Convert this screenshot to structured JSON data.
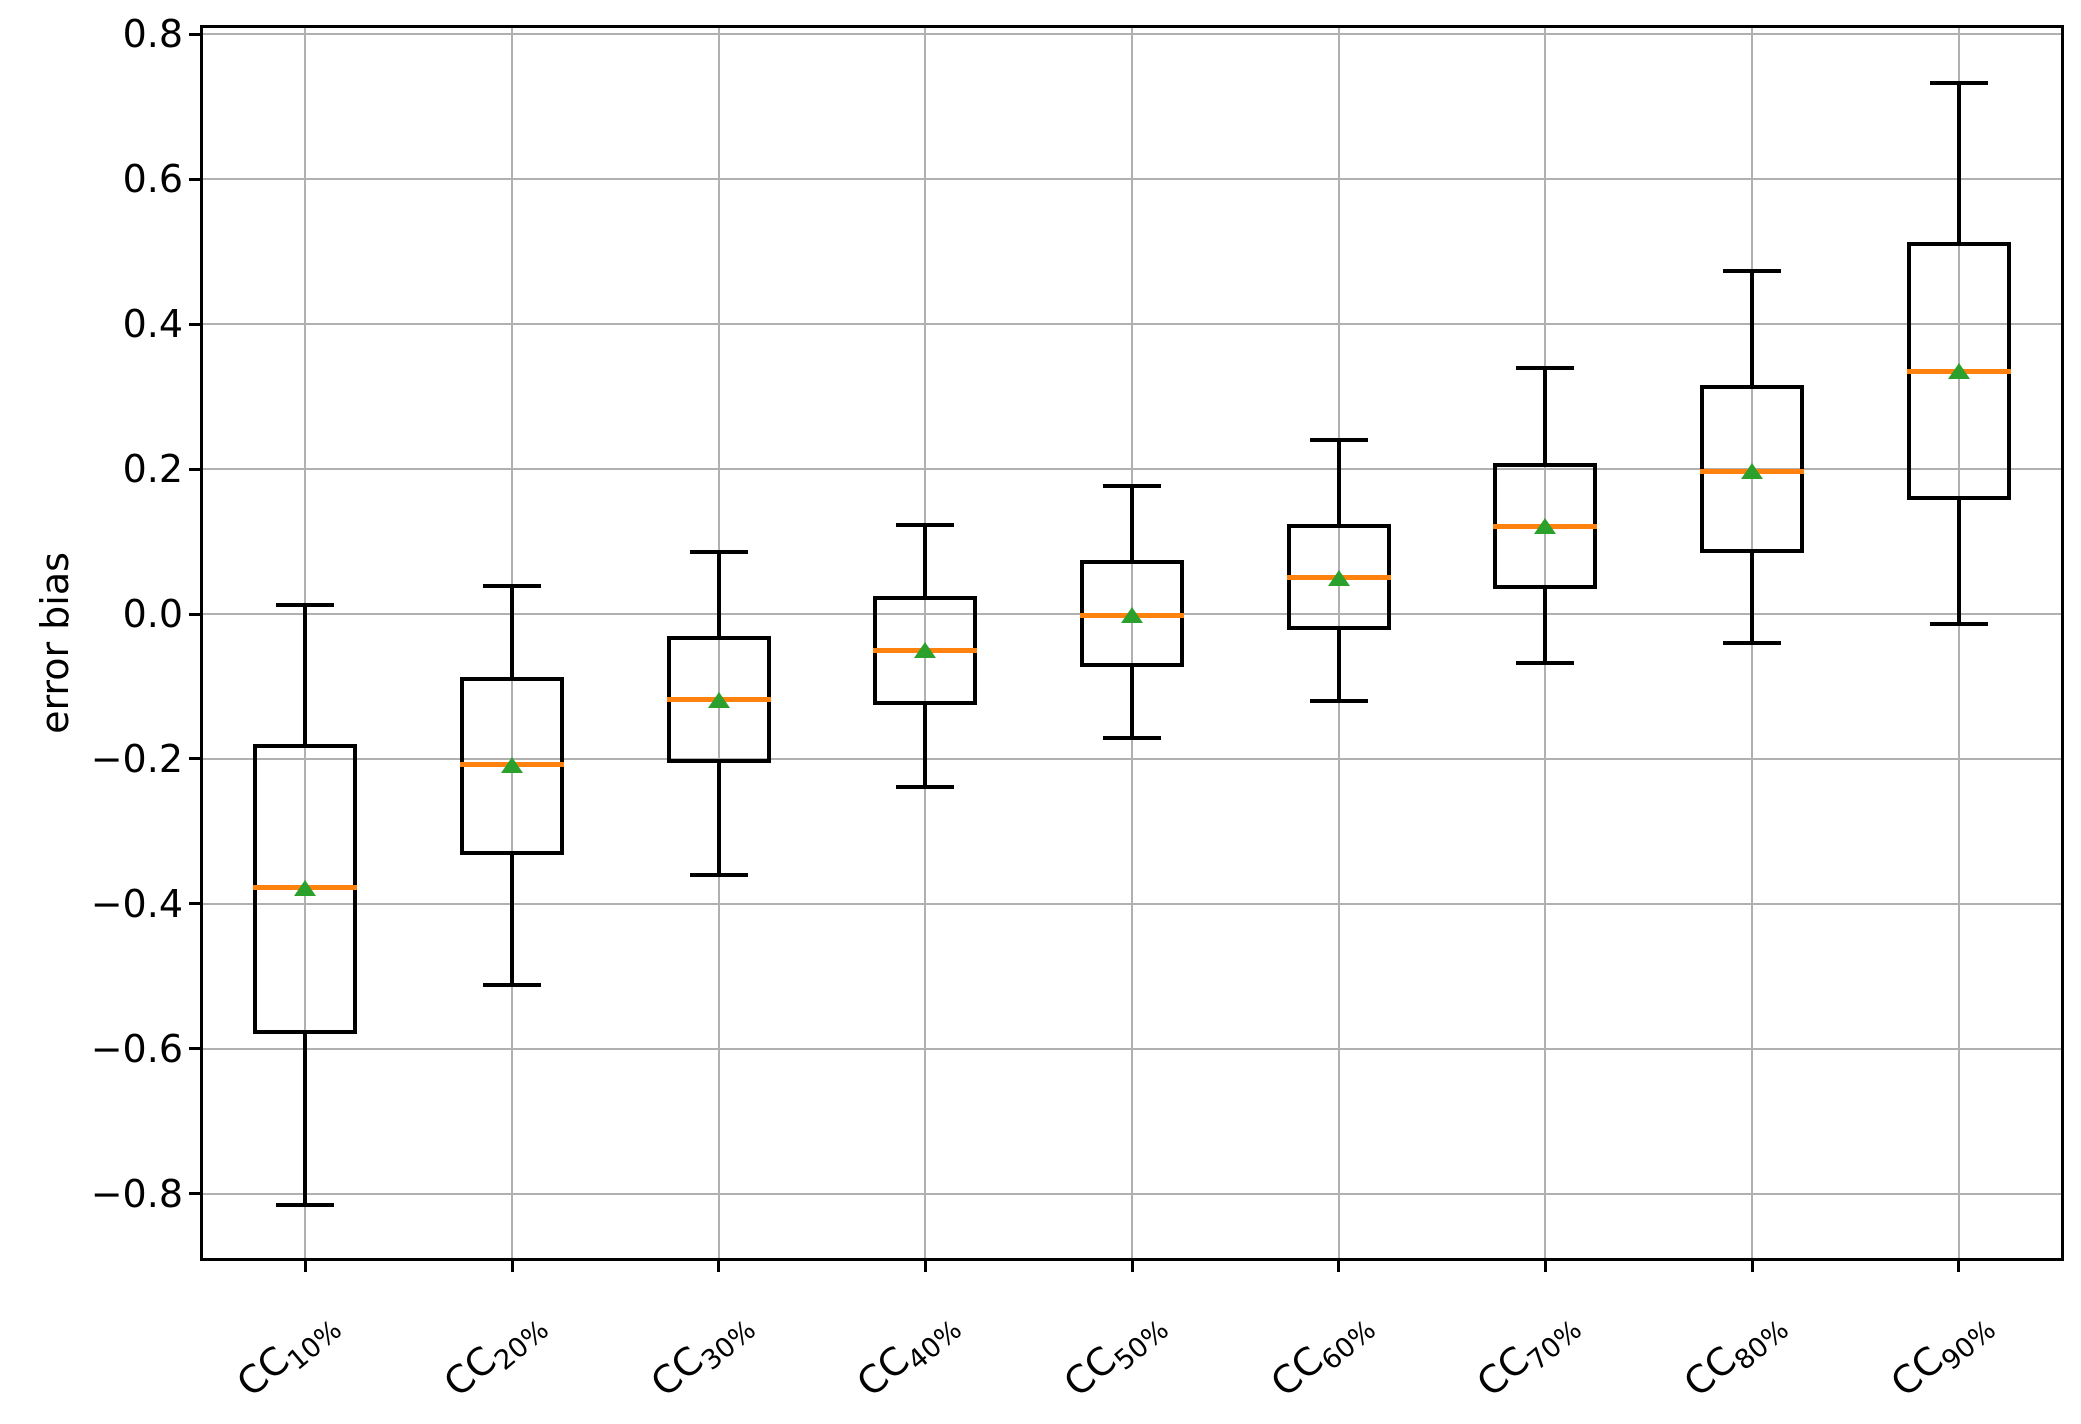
{
  "chart_data": {
    "type": "boxplot",
    "title": "",
    "xlabel": "",
    "ylabel": "error bias",
    "ylim": [
      -0.89,
      0.81
    ],
    "xlim": [
      0.5,
      9.5
    ],
    "grid": true,
    "legend_position": "none",
    "yticks": [
      {
        "value": 0.8,
        "label": "0.8"
      },
      {
        "value": 0.6,
        "label": "0.6"
      },
      {
        "value": 0.4,
        "label": "0.4"
      },
      {
        "value": 0.2,
        "label": "0.2"
      },
      {
        "value": 0.0,
        "label": "0.0"
      },
      {
        "value": -0.2,
        "label": "−0.2"
      },
      {
        "value": -0.4,
        "label": "−0.4"
      },
      {
        "value": -0.6,
        "label": "−0.6"
      },
      {
        "value": -0.8,
        "label": "−0.8"
      }
    ],
    "categories": [
      {
        "label": "CC10%",
        "prefix": "CC",
        "sub": "10%"
      },
      {
        "label": "CC20%",
        "prefix": "CC",
        "sub": "20%"
      },
      {
        "label": "CC30%",
        "prefix": "CC",
        "sub": "30%"
      },
      {
        "label": "CC40%",
        "prefix": "CC",
        "sub": "40%"
      },
      {
        "label": "CC50%",
        "prefix": "CC",
        "sub": "50%"
      },
      {
        "label": "CC60%",
        "prefix": "CC",
        "sub": "60%"
      },
      {
        "label": "CC70%",
        "prefix": "CC",
        "sub": "70%"
      },
      {
        "label": "CC80%",
        "prefix": "CC",
        "sub": "80%"
      },
      {
        "label": "CC90%",
        "prefix": "CC",
        "sub": "90%"
      }
    ],
    "series": [
      {
        "name": "CC10%",
        "whislo": -0.815,
        "q1": -0.58,
        "med": -0.378,
        "q3": -0.179,
        "whishi": 0.013,
        "mean": -0.378
      },
      {
        "name": "CC20%",
        "whislo": -0.512,
        "q1": -0.333,
        "med": -0.208,
        "q3": -0.087,
        "whishi": 0.038,
        "mean": -0.209
      },
      {
        "name": "CC30%",
        "whislo": -0.36,
        "q1": -0.206,
        "med": -0.118,
        "q3": -0.03,
        "whishi": 0.086,
        "mean": -0.119
      },
      {
        "name": "CC40%",
        "whislo": -0.239,
        "q1": -0.126,
        "med": -0.05,
        "q3": 0.025,
        "whishi": 0.123,
        "mean": -0.05
      },
      {
        "name": "CC50%",
        "whislo": -0.171,
        "q1": -0.073,
        "med": -0.002,
        "q3": 0.074,
        "whishi": 0.176,
        "mean": -0.002
      },
      {
        "name": "CC60%",
        "whislo": -0.12,
        "q1": -0.022,
        "med": 0.051,
        "q3": 0.124,
        "whishi": 0.24,
        "mean": 0.05
      },
      {
        "name": "CC70%",
        "whislo": -0.068,
        "q1": 0.035,
        "med": 0.121,
        "q3": 0.209,
        "whishi": 0.339,
        "mean": 0.121
      },
      {
        "name": "CC80%",
        "whislo": -0.04,
        "q1": 0.084,
        "med": 0.197,
        "q3": 0.316,
        "whishi": 0.473,
        "mean": 0.198
      },
      {
        "name": "CC90%",
        "whislo": -0.014,
        "q1": 0.158,
        "med": 0.335,
        "q3": 0.513,
        "whishi": 0.733,
        "mean": 0.335
      }
    ],
    "colors": {
      "median": "#ff810e",
      "mean_marker": "#2ca02c",
      "line": "#000000",
      "grid": "#b0b0b0",
      "background": "#ffffff"
    }
  }
}
